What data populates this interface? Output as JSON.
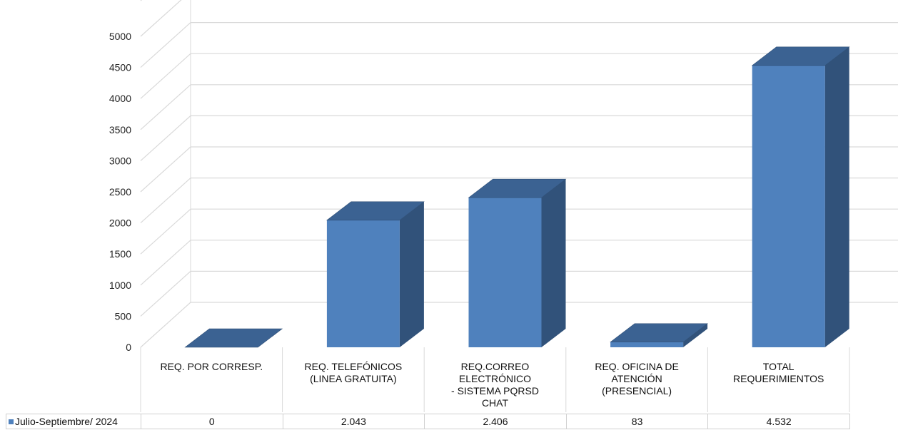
{
  "chart_data": {
    "type": "bar",
    "style": "3d-column-with-data-table",
    "categories": [
      "REQ. POR CORRESP.",
      "REQ. TELEFÓNICOS\n(LINEA GRATUITA)",
      "REQ.CORREO\nELECTRÓNICO\n- SISTEMA PQRSD\nCHAT",
      "REQ. OFICINA DE\nATENCIÓN\n(PRESENCIAL)",
      "TOTAL\nREQUERIMIENTOS"
    ],
    "series": [
      {
        "name": "Julio-Septiembre/ 2024",
        "values": [
          0,
          2043,
          2406,
          83,
          4532
        ],
        "labels": [
          "0",
          "2.043",
          "2.406",
          "83",
          "4.532"
        ],
        "color": "#4f81bd"
      }
    ],
    "ylim": [
      0,
      5000
    ],
    "yticks": [
      0,
      500,
      1000,
      1500,
      2000,
      2500,
      3000,
      3500,
      4000,
      4500,
      5000
    ],
    "grid": true,
    "legend": "data-table"
  }
}
